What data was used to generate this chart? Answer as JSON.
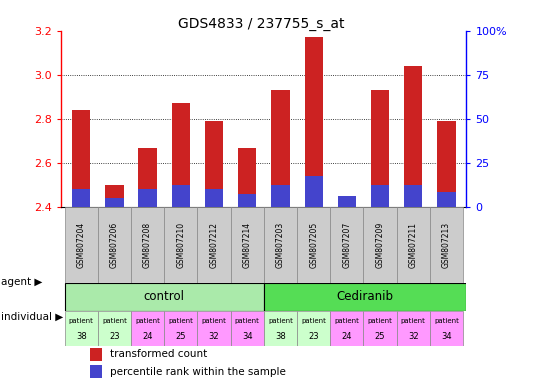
{
  "title": "GDS4833 / 237755_s_at",
  "samples": [
    "GSM807204",
    "GSM807206",
    "GSM807208",
    "GSM807210",
    "GSM807212",
    "GSM807214",
    "GSM807203",
    "GSM807205",
    "GSM807207",
    "GSM807209",
    "GSM807211",
    "GSM807213"
  ],
  "red_values": [
    2.84,
    2.5,
    2.67,
    2.87,
    2.79,
    2.67,
    2.93,
    3.17,
    2.45,
    2.93,
    3.04,
    2.79
  ],
  "blue_values": [
    2.48,
    2.44,
    2.48,
    2.5,
    2.48,
    2.46,
    2.5,
    2.54,
    2.45,
    2.5,
    2.5,
    2.47
  ],
  "ylim": [
    2.4,
    3.2
  ],
  "yticks_left": [
    2.4,
    2.6,
    2.8,
    3.0,
    3.2
  ],
  "yticks_right_pos": [
    2.4,
    2.6,
    2.8,
    3.0,
    3.2
  ],
  "yticks_right_labels": [
    "0",
    "25",
    "50",
    "75",
    "100%"
  ],
  "patients": [
    "38",
    "23",
    "24",
    "25",
    "32",
    "34",
    "38",
    "23",
    "24",
    "25",
    "32",
    "34"
  ],
  "patient_colors": [
    "#ccffcc",
    "#ccffcc",
    "#ff99ff",
    "#ff99ff",
    "#ff99ff",
    "#ff99ff",
    "#ccffcc",
    "#ccffcc",
    "#ff99ff",
    "#ff99ff",
    "#ff99ff",
    "#ff99ff"
  ],
  "bar_width": 0.55,
  "bar_bottom": 2.4,
  "red_color": "#cc2222",
  "blue_color": "#4444cc",
  "control_bg": "#aaeaaa",
  "cediranib_bg": "#55dd55",
  "gsm_box_bg": "#cccccc",
  "title_fontsize": 10,
  "bar_fontsize": 6,
  "legend_fontsize": 7.5
}
